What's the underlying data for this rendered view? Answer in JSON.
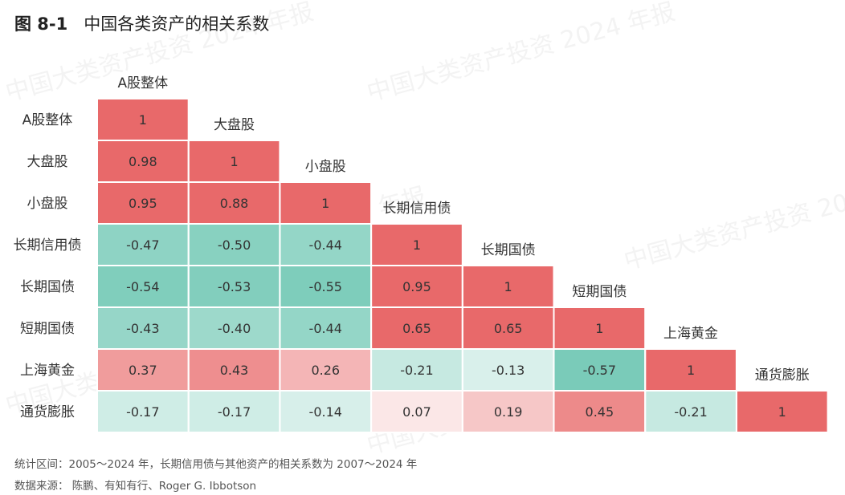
{
  "figure": {
    "label": "图 8-1",
    "title": "中国各类资产的相关系数"
  },
  "watermark": "中国大类资产投资 2024 年报",
  "chart_data": {
    "type": "heatmap",
    "assets": [
      "A股整体",
      "大盘股",
      "小盘股",
      "长期信用债",
      "长期国债",
      "短期国债",
      "上海黄金",
      "通货膨胀"
    ],
    "matrix": [
      [
        "1"
      ],
      [
        "0.98",
        "1"
      ],
      [
        "0.95",
        "0.88",
        "1"
      ],
      [
        "-0.47",
        "-0.50",
        "-0.44",
        "1"
      ],
      [
        "-0.54",
        "-0.53",
        "-0.55",
        "0.95",
        "1"
      ],
      [
        "-0.43",
        "-0.40",
        "-0.44",
        "0.65",
        "0.65",
        "1"
      ],
      [
        "0.37",
        "0.43",
        "0.26",
        "-0.21",
        "-0.13",
        "-0.57",
        "1"
      ],
      [
        "-0.17",
        "-0.17",
        "-0.14",
        "0.07",
        "0.19",
        "0.45",
        "-0.21",
        "1"
      ]
    ],
    "colors": {
      "positive": "#e8696a",
      "negative": "#74c9b6",
      "neutral": "#ffffff"
    }
  },
  "notes": {
    "period": "统计区间：2005～2024 年，长期信用债与其他资产的相关系数为 2007～2024 年",
    "source": "数据来源： 陈鹏、有知有行、Roger G. Ibbotson"
  }
}
